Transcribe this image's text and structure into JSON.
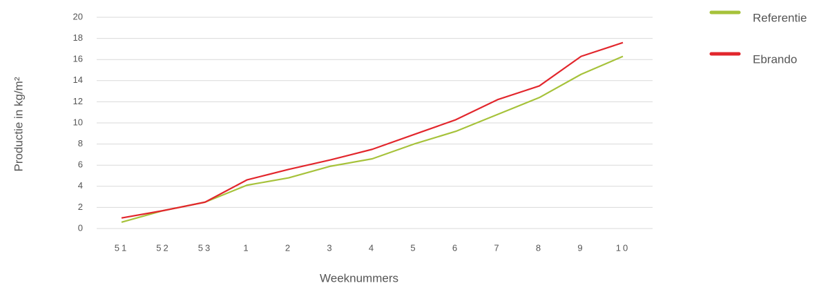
{
  "chart_data": {
    "type": "line",
    "x_label": "Weeknummers",
    "y_label": "Productie in kg/m²",
    "categories": [
      "51",
      "52",
      "53",
      "1",
      "2",
      "3",
      "4",
      "5",
      "6",
      "7",
      "8",
      "9",
      "10"
    ],
    "series": [
      {
        "name": "Referentie",
        "color": "#a6c23a",
        "values": [
          0.6,
          1.7,
          2.5,
          4.1,
          4.8,
          5.9,
          6.6,
          8.0,
          9.2,
          10.8,
          12.4,
          14.6,
          16.3
        ]
      },
      {
        "name": "Ebrando",
        "color": "#e2262c",
        "values": [
          1.0,
          1.7,
          2.5,
          4.6,
          5.6,
          6.5,
          7.5,
          8.9,
          10.3,
          12.2,
          13.5,
          16.3,
          17.6
        ]
      }
    ],
    "ylim": [
      0,
      20
    ],
    "yticks": [
      0,
      2,
      4,
      6,
      8,
      10,
      12,
      14,
      16,
      18,
      20
    ],
    "grid": true,
    "legend": "top-right"
  }
}
